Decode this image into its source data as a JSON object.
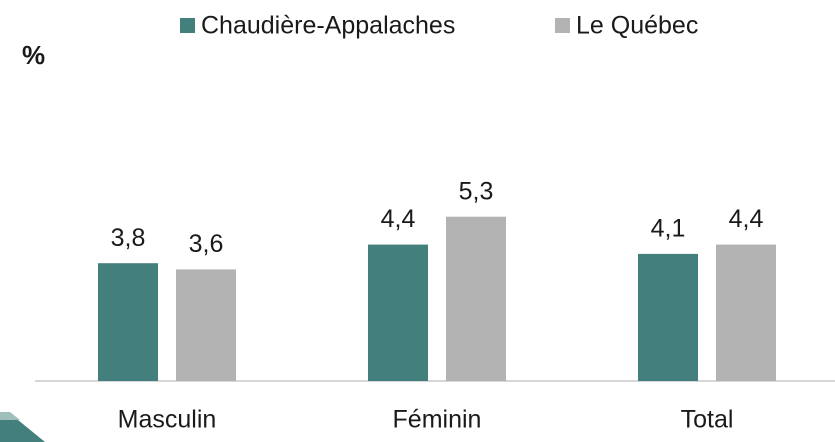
{
  "chart_data": {
    "type": "bar",
    "y_label": "%",
    "categories": [
      "Masculin",
      "Féminin",
      "Total"
    ],
    "series": [
      {
        "name": "Chaudière-Appalaches",
        "color": "#437f7d",
        "values": [
          3.8,
          4.4,
          4.1
        ],
        "value_labels": [
          "3,8",
          "4,4",
          "4,1"
        ]
      },
      {
        "name": "Le Québec",
        "color": "#b3b3b3",
        "values": [
          3.6,
          5.3,
          4.4
        ],
        "value_labels": [
          "3,6",
          "5,3",
          "4,4"
        ]
      }
    ],
    "legend": "top"
  }
}
